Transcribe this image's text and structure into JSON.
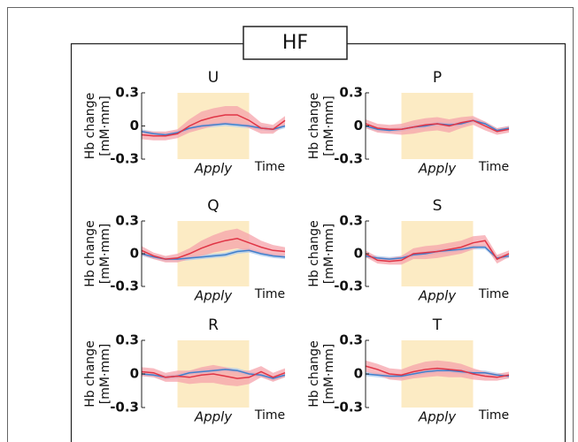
{
  "figure_title": "HF",
  "chart_data": [
    {
      "type": "line",
      "title": "U",
      "ylabel": [
        "Hb change",
        "[mM·mm]"
      ],
      "xlabel": "Time",
      "x": [
        0,
        1,
        2,
        3,
        4,
        5,
        6,
        7,
        8,
        9,
        10,
        11,
        12
      ],
      "xlim": [
        0,
        12
      ],
      "ylim": [
        -0.3,
        0.3
      ],
      "yticks": [
        0.3,
        0,
        -0.3
      ],
      "highlight": {
        "label": "Apply",
        "x": [
          3,
          9
        ],
        "color": "#fcebc4"
      },
      "series": [
        {
          "color": "#3f7fcc",
          "band_color": "#a9c9ee",
          "values": [
            -0.05,
            -0.07,
            -0.08,
            -0.06,
            -0.02,
            0.0,
            0.01,
            0.02,
            0.01,
            0.0,
            -0.02,
            -0.03,
            0.0
          ],
          "band": [
            0.02,
            0.02,
            0.02,
            0.02,
            0.02,
            0.02,
            0.02,
            0.02,
            0.02,
            0.02,
            0.02,
            0.02,
            0.02
          ]
        },
        {
          "color": "#e03546",
          "band_color": "#f5a3ab",
          "values": [
            -0.08,
            -0.09,
            -0.09,
            -0.07,
            0.0,
            0.05,
            0.08,
            0.1,
            0.1,
            0.05,
            -0.02,
            -0.03,
            0.05
          ],
          "band": [
            0.04,
            0.04,
            0.04,
            0.04,
            0.06,
            0.08,
            0.08,
            0.08,
            0.08,
            0.07,
            0.05,
            0.04,
            0.04
          ]
        }
      ]
    },
    {
      "type": "line",
      "title": "P",
      "ylabel": [
        "Hb change",
        "[mM·mm]"
      ],
      "xlabel": "Time",
      "x": [
        0,
        1,
        2,
        3,
        4,
        5,
        6,
        7,
        8,
        9,
        10,
        11,
        12
      ],
      "xlim": [
        0,
        12
      ],
      "ylim": [
        -0.3,
        0.3
      ],
      "yticks": [
        0.3,
        0,
        -0.3
      ],
      "highlight": {
        "label": "Apply",
        "x": [
          3,
          9
        ],
        "color": "#fcebc4"
      },
      "series": [
        {
          "color": "#3f7fcc",
          "band_color": "#a9c9ee",
          "values": [
            0.0,
            -0.03,
            -0.04,
            -0.03,
            -0.01,
            0.0,
            0.02,
            0.01,
            0.02,
            0.05,
            0.02,
            -0.04,
            -0.02
          ],
          "band": [
            0.02,
            0.02,
            0.02,
            0.02,
            0.02,
            0.02,
            0.02,
            0.02,
            0.02,
            0.02,
            0.02,
            0.02,
            0.02
          ]
        },
        {
          "color": "#e03546",
          "band_color": "#f5a3ab",
          "values": [
            0.02,
            -0.02,
            -0.03,
            -0.03,
            -0.01,
            0.01,
            0.02,
            0.0,
            0.03,
            0.05,
            0.0,
            -0.05,
            -0.03
          ],
          "band": [
            0.04,
            0.04,
            0.04,
            0.05,
            0.06,
            0.06,
            0.06,
            0.06,
            0.05,
            0.04,
            0.04,
            0.03,
            0.03
          ]
        }
      ]
    },
    {
      "type": "line",
      "title": "Q",
      "ylabel": [
        "Hb change",
        "[mM·mm]"
      ],
      "xlabel": "Time",
      "x": [
        0,
        1,
        2,
        3,
        4,
        5,
        6,
        7,
        8,
        9,
        10,
        11,
        12
      ],
      "xlim": [
        0,
        12
      ],
      "ylim": [
        -0.3,
        0.3
      ],
      "yticks": [
        0.3,
        0,
        -0.3
      ],
      "highlight": {
        "label": "Apply",
        "x": [
          3,
          9
        ],
        "color": "#fcebc4"
      },
      "series": [
        {
          "color": "#3f7fcc",
          "band_color": "#a9c9ee",
          "values": [
            0.0,
            -0.03,
            -0.05,
            -0.05,
            -0.04,
            -0.03,
            -0.02,
            -0.01,
            0.02,
            0.03,
            0.0,
            -0.02,
            -0.03
          ],
          "band": [
            0.02,
            0.02,
            0.02,
            0.02,
            0.02,
            0.02,
            0.02,
            0.02,
            0.02,
            0.02,
            0.02,
            0.02,
            0.02
          ]
        },
        {
          "color": "#e03546",
          "band_color": "#f5a3ab",
          "values": [
            0.03,
            -0.02,
            -0.05,
            -0.04,
            0.0,
            0.05,
            0.09,
            0.12,
            0.14,
            0.1,
            0.06,
            0.03,
            0.02
          ],
          "band": [
            0.04,
            0.03,
            0.03,
            0.04,
            0.05,
            0.07,
            0.08,
            0.09,
            0.09,
            0.08,
            0.06,
            0.05,
            0.04
          ]
        }
      ]
    },
    {
      "type": "line",
      "title": "S",
      "ylabel": [
        "Hb change",
        "[mM·mm]"
      ],
      "xlabel": "Time",
      "x": [
        0,
        1,
        2,
        3,
        4,
        5,
        6,
        7,
        8,
        9,
        10,
        11,
        12
      ],
      "xlim": [
        0,
        12
      ],
      "ylim": [
        -0.3,
        0.3
      ],
      "yticks": [
        0.3,
        0,
        -0.3
      ],
      "highlight": {
        "label": "Apply",
        "x": [
          3,
          9
        ],
        "color": "#fcebc4"
      },
      "series": [
        {
          "color": "#3f7fcc",
          "band_color": "#a9c9ee",
          "values": [
            -0.02,
            -0.04,
            -0.05,
            -0.04,
            -0.01,
            0.0,
            0.02,
            0.03,
            0.04,
            0.06,
            0.06,
            -0.04,
            -0.02
          ],
          "band": [
            0.02,
            0.02,
            0.02,
            0.02,
            0.02,
            0.02,
            0.02,
            0.02,
            0.02,
            0.02,
            0.02,
            0.02,
            0.02
          ]
        },
        {
          "color": "#e03546",
          "band_color": "#f5a3ab",
          "values": [
            0.0,
            -0.06,
            -0.07,
            -0.06,
            0.0,
            0.01,
            0.02,
            0.04,
            0.06,
            0.1,
            0.12,
            -0.05,
            0.0
          ],
          "band": [
            0.03,
            0.03,
            0.03,
            0.04,
            0.05,
            0.06,
            0.06,
            0.06,
            0.06,
            0.06,
            0.05,
            0.04,
            0.03
          ]
        }
      ]
    },
    {
      "type": "line",
      "title": "R",
      "ylabel": [
        "Hb change",
        "[mM·mm]"
      ],
      "xlabel": "Time",
      "x": [
        0,
        1,
        2,
        3,
        4,
        5,
        6,
        7,
        8,
        9,
        10,
        11,
        12
      ],
      "xlim": [
        0,
        12
      ],
      "ylim": [
        -0.3,
        0.3
      ],
      "yticks": [
        0.3,
        0,
        -0.3
      ],
      "highlight": {
        "label": "Apply",
        "x": [
          3,
          9
        ],
        "color": "#fcebc4"
      },
      "series": [
        {
          "color": "#3f7fcc",
          "band_color": "#a9c9ee",
          "values": [
            0.0,
            -0.01,
            -0.03,
            -0.02,
            0.01,
            0.02,
            0.03,
            0.04,
            0.03,
            0.0,
            -0.01,
            -0.04,
            -0.01
          ],
          "band": [
            0.02,
            0.02,
            0.02,
            0.02,
            0.02,
            0.02,
            0.02,
            0.02,
            0.02,
            0.02,
            0.02,
            0.02,
            0.02
          ]
        },
        {
          "color": "#e03546",
          "band_color": "#f5a3ab",
          "values": [
            0.02,
            0.01,
            -0.03,
            -0.02,
            -0.03,
            -0.01,
            0.0,
            -0.02,
            -0.04,
            -0.03,
            0.02,
            -0.03,
            0.01
          ],
          "band": [
            0.04,
            0.04,
            0.04,
            0.05,
            0.06,
            0.07,
            0.08,
            0.08,
            0.07,
            0.06,
            0.05,
            0.04,
            0.04
          ]
        }
      ]
    },
    {
      "type": "line",
      "title": "T",
      "ylabel": [
        "Hb change",
        "[mM·mm]"
      ],
      "xlabel": "Time",
      "x": [
        0,
        1,
        2,
        3,
        4,
        5,
        6,
        7,
        8,
        9,
        10,
        11,
        12
      ],
      "xlim": [
        0,
        12
      ],
      "ylim": [
        -0.3,
        0.3
      ],
      "yticks": [
        0.3,
        0,
        -0.3
      ],
      "highlight": {
        "label": "Apply",
        "x": [
          3,
          9
        ],
        "color": "#fcebc4"
      },
      "series": [
        {
          "color": "#3f7fcc",
          "band_color": "#a9c9ee",
          "values": [
            0.0,
            -0.01,
            -0.02,
            -0.02,
            0.0,
            0.02,
            0.03,
            0.03,
            0.02,
            0.01,
            0.01,
            -0.01,
            -0.02
          ],
          "band": [
            0.02,
            0.02,
            0.02,
            0.02,
            0.02,
            0.02,
            0.02,
            0.02,
            0.02,
            0.02,
            0.02,
            0.02,
            0.02
          ]
        },
        {
          "color": "#e03546",
          "band_color": "#f5a3ab",
          "values": [
            0.07,
            0.04,
            0.0,
            -0.01,
            0.02,
            0.04,
            0.05,
            0.04,
            0.03,
            0.0,
            -0.02,
            -0.03,
            -0.01
          ],
          "band": [
            0.05,
            0.05,
            0.05,
            0.05,
            0.06,
            0.07,
            0.07,
            0.07,
            0.06,
            0.05,
            0.04,
            0.03,
            0.03
          ]
        }
      ]
    }
  ]
}
